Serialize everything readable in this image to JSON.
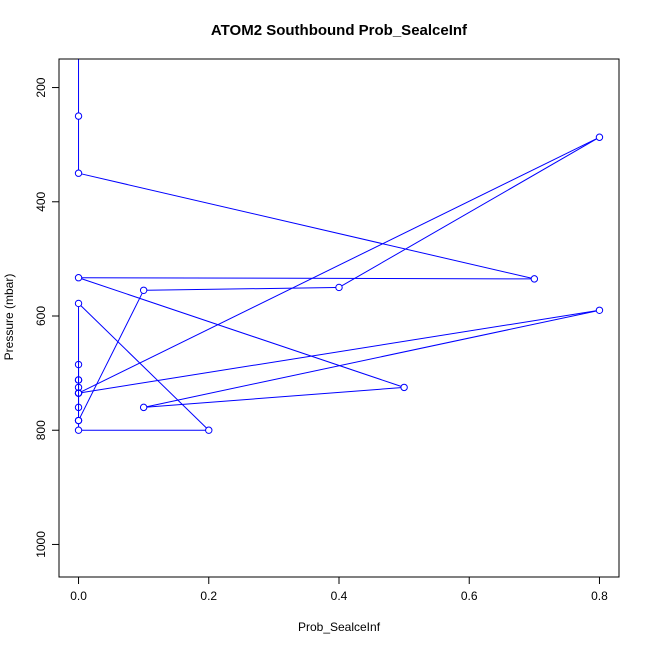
{
  "chart_data": {
    "type": "line",
    "title": "ATOM2 Southbound Prob_SealceInf",
    "xlabel": "Prob_SealceInf",
    "ylabel": "Pressure (mbar)",
    "xlim": [
      -0.03,
      0.83
    ],
    "ylim": [
      1057,
      150
    ],
    "y_reversed": true,
    "x_ticks": [
      0.0,
      0.2,
      0.4,
      0.6,
      0.8
    ],
    "x_tick_labels": [
      "0.0",
      "0.2",
      "0.4",
      "0.6",
      "0.8"
    ],
    "y_ticks": [
      200,
      400,
      600,
      800,
      1000
    ],
    "y_tick_labels": [
      "200",
      "400",
      "600",
      "800",
      "1000"
    ],
    "grid": false,
    "color": "#0000ff",
    "marker": "open-circle",
    "series": [
      {
        "points": [
          {
            "x": 0.0,
            "y": 100
          },
          {
            "x": 0.0,
            "y": 250
          },
          {
            "x": 0.0,
            "y": 350
          },
          {
            "x": 0.7,
            "y": 535
          },
          {
            "x": 0.0,
            "y": 533
          },
          {
            "x": 0.5,
            "y": 725
          },
          {
            "x": 0.1,
            "y": 760
          },
          {
            "x": 0.8,
            "y": 590
          },
          {
            "x": 0.0,
            "y": 735
          },
          {
            "x": 0.8,
            "y": 287
          },
          {
            "x": 0.4,
            "y": 550
          },
          {
            "x": 0.1,
            "y": 555
          },
          {
            "x": 0.0,
            "y": 783
          },
          {
            "x": 0.0,
            "y": 578
          },
          {
            "x": 0.2,
            "y": 800
          },
          {
            "x": 0.0,
            "y": 800
          },
          {
            "x": 0.0,
            "y": 783
          },
          {
            "x": 0.0,
            "y": 735
          },
          {
            "x": 0.0,
            "y": 712
          },
          {
            "x": 0.0,
            "y": 685
          },
          {
            "x": 0.0,
            "y": 725
          },
          {
            "x": 0.0,
            "y": 712
          },
          {
            "x": 0.0,
            "y": 735
          },
          {
            "x": 0.0,
            "y": 760
          }
        ]
      }
    ]
  }
}
